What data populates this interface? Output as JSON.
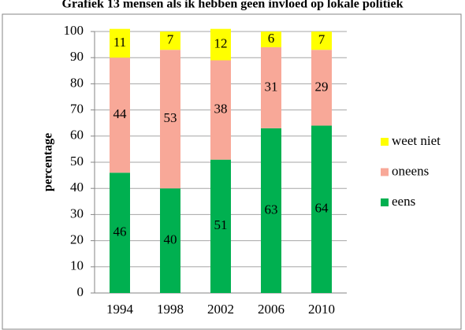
{
  "chart_data": {
    "type": "stacked_bar",
    "title": "Grafiek 13 mensen als ik hebben geen invloed op lokale politiek",
    "y_label": "percentage",
    "categories": [
      "1994",
      "1998",
      "2002",
      "2006",
      "2010"
    ],
    "series": [
      {
        "name": "eens",
        "color": "#00b050",
        "values": [
          46,
          40,
          51,
          63,
          64
        ]
      },
      {
        "name": "oneens",
        "color": "#f8a898",
        "values": [
          44,
          53,
          38,
          31,
          29
        ]
      },
      {
        "name": "weet niet",
        "color": "#ffff00",
        "values": [
          11,
          7,
          12,
          6,
          7
        ]
      }
    ],
    "ylim": [
      0,
      100
    ],
    "yticks": [
      0,
      10,
      20,
      30,
      40,
      50,
      60,
      70,
      80,
      90,
      100
    ],
    "grid": true,
    "legend": "right"
  }
}
